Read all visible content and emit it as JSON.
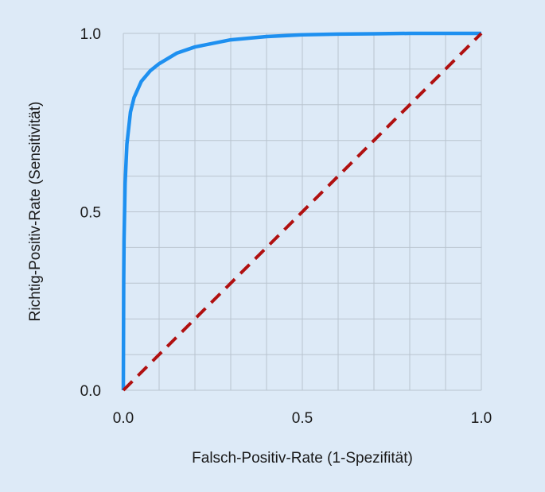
{
  "chart_data": {
    "type": "line",
    "title": "",
    "xlabel": "Falsch-Positiv-Rate (1-Spezifität)",
    "ylabel": "Richtig-Positiv-Rate (Sensitivität)",
    "xlim": [
      0,
      1
    ],
    "ylim": [
      0,
      1
    ],
    "x_ticks": [
      0.0,
      0.5,
      1.0
    ],
    "y_ticks": [
      0.0,
      0.5,
      1.0
    ],
    "x_tick_labels": [
      "0.0",
      "0.5",
      "1.0"
    ],
    "y_tick_labels": [
      "0.0",
      "0.5",
      "1.0"
    ],
    "grid": true,
    "grid_step": 0.1,
    "legend": "none",
    "series": [
      {
        "style": "solid",
        "color": "#1e90f0",
        "x": [
          0,
          0.001,
          0.002,
          0.005,
          0.01,
          0.02,
          0.03,
          0.05,
          0.075,
          0.1,
          0.15,
          0.2,
          0.3,
          0.4,
          0.5,
          0.6,
          0.7,
          0.8,
          0.9,
          1.0
        ],
        "y": [
          0,
          0.3,
          0.42,
          0.58,
          0.69,
          0.78,
          0.82,
          0.865,
          0.895,
          0.915,
          0.945,
          0.962,
          0.982,
          0.991,
          0.996,
          0.998,
          0.999,
          1.0,
          1.0,
          1.0
        ]
      },
      {
        "style": "dashed",
        "color": "#b01010",
        "x": [
          0,
          1
        ],
        "y": [
          0,
          1
        ]
      }
    ]
  }
}
